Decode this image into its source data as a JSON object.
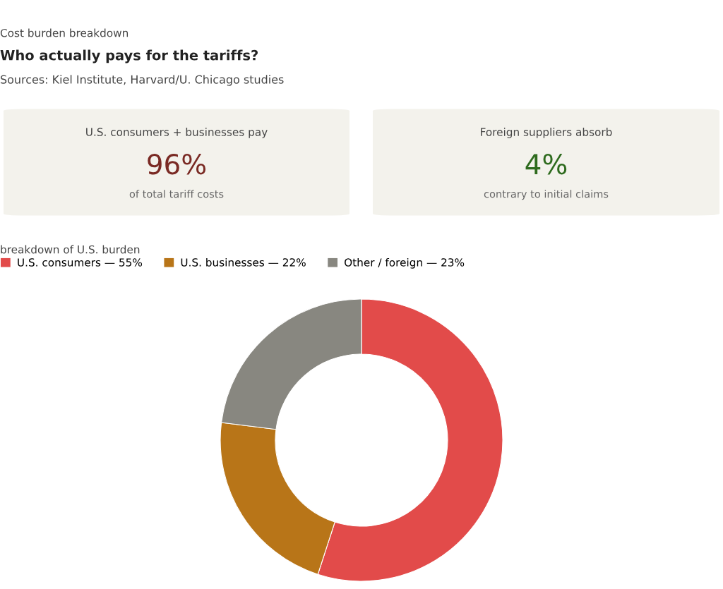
{
  "chart_data": [
    {
      "type": "other",
      "subtitle": "Cost burden breakdown",
      "title": "Who actually pays for the tariffs?",
      "annotations": [
        "Sources: Kiel Institute, Harvard/U. Chicago studies"
      ]
    },
    {
      "type": "other",
      "title": "U.S. consumers + businesses pay",
      "annotations": [
        "96%",
        "of total tariff costs"
      ],
      "color": "#7a2a24"
    },
    {
      "type": "other",
      "title": "Foreign suppliers absorb",
      "annotations": [
        "4%",
        "contrary to initial claims"
      ],
      "color": "#2e6b1e"
    },
    {
      "type": "donut",
      "title": "breakdown of U.S. burden",
      "categories": [
        "U.S. consumers — 55%",
        "U.S. businesses — 22%",
        "Other / foreign — 23%"
      ],
      "values": [
        55,
        22,
        23
      ],
      "colors": [
        "#e24b4a",
        "#b87518",
        "#888780"
      ],
      "legend": "top left"
    }
  ]
}
